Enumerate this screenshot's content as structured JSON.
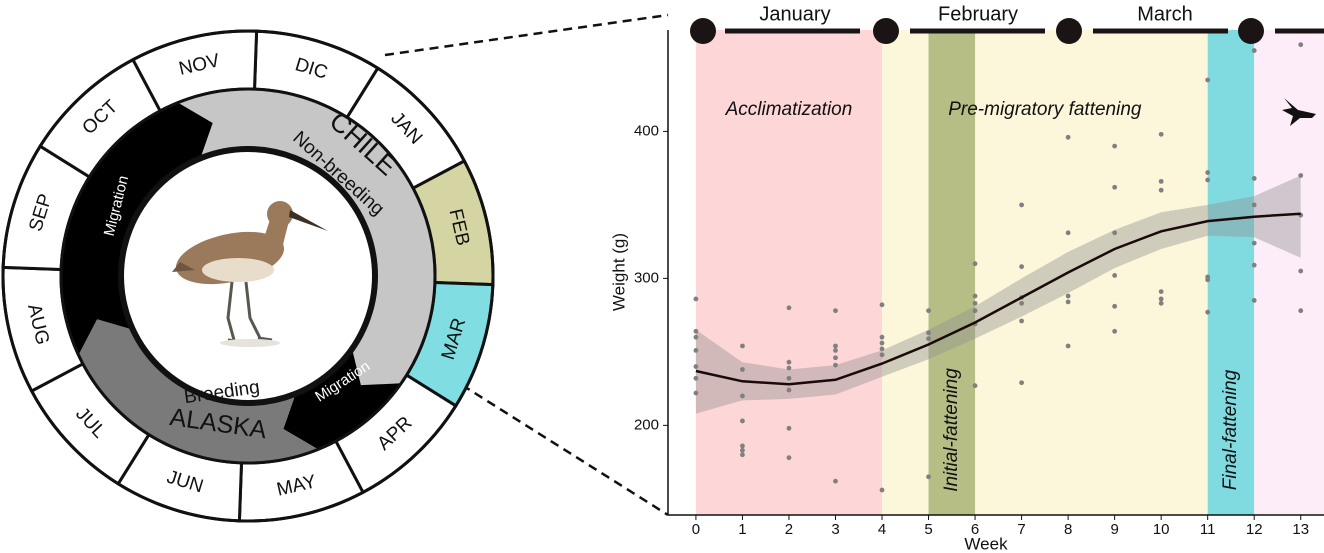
{
  "cycle": {
    "months": [
      {
        "label": "DIC",
        "color": "#ffffff"
      },
      {
        "label": "JAN",
        "color": "#ffffff"
      },
      {
        "label": "FEB",
        "color": "#d4d5a3"
      },
      {
        "label": "MAR",
        "color": "#80dde2"
      },
      {
        "label": "APR",
        "color": "#ffffff"
      },
      {
        "label": "MAY",
        "color": "#ffffff"
      },
      {
        "label": "JUN",
        "color": "#ffffff"
      },
      {
        "label": "JUL",
        "color": "#ffffff"
      },
      {
        "label": "AUG",
        "color": "#ffffff"
      },
      {
        "label": "SEP",
        "color": "#ffffff"
      },
      {
        "label": "OCT",
        "color": "#ffffff"
      },
      {
        "label": "NOV",
        "color": "#ffffff"
      }
    ],
    "chile": "CHILE",
    "non_breeding": "Non-breeding",
    "breeding": "Breeding",
    "alaska": "ALASKA",
    "migration": [
      "Migration",
      "Migration"
    ]
  },
  "chart_data": {
    "type": "scatter",
    "xlabel": "Week",
    "ylabel": "Weight (g)",
    "xlim": [
      -0.6,
      13.5
    ],
    "ylim": [
      139,
      469
    ],
    "xticks": [
      0,
      1,
      2,
      3,
      4,
      5,
      6,
      7,
      8,
      9,
      10,
      11,
      12,
      13
    ],
    "yticks": [
      200,
      300,
      400
    ],
    "months": [
      "January",
      "February",
      "March"
    ],
    "phases": [
      {
        "label": "Acclimatization",
        "start": 0,
        "end": 4,
        "color": "#fdd6d7"
      },
      {
        "label": "Pre-migratory fattening",
        "start": 4,
        "end": 11,
        "color": "#fcf6da"
      },
      {
        "label": "Initial-fattening",
        "start": 5,
        "end": 6,
        "color": "#b6be86"
      },
      {
        "label": "Final-fattening",
        "start": 11,
        "end": 12,
        "color": "#80dbe0"
      },
      {
        "start": 12,
        "end": 13.5,
        "color": "#fcedf8"
      }
    ],
    "points": {
      "color": "#808080",
      "x": [
        0,
        0,
        0,
        0,
        0,
        0,
        0,
        1,
        1,
        1,
        1,
        1,
        1,
        1,
        2,
        2,
        2,
        2,
        2,
        2,
        2,
        3,
        3,
        3,
        3,
        3,
        3,
        4,
        4,
        4,
        4,
        4,
        4,
        5,
        5,
        5,
        5,
        6,
        6,
        6,
        6,
        6,
        6,
        7,
        7,
        7,
        7,
        7,
        7,
        8,
        8,
        8,
        8,
        8,
        9,
        9,
        9,
        9,
        9,
        9,
        10,
        10,
        10,
        10,
        10,
        10,
        11,
        11,
        11,
        11,
        11,
        11,
        12,
        12,
        12,
        12,
        12,
        12,
        13,
        13,
        13,
        13,
        13
      ],
      "y": [
        286,
        264,
        260,
        251,
        240,
        232,
        222,
        254,
        238,
        220,
        203,
        186,
        183,
        180,
        280,
        243,
        239,
        232,
        224,
        198,
        178,
        278,
        254,
        251,
        246,
        241,
        162,
        282,
        260,
        256,
        252,
        248,
        156,
        278,
        263,
        259,
        165,
        310,
        288,
        283,
        278,
        269,
        227,
        350,
        308,
        287,
        283,
        271,
        229,
        396,
        331,
        288,
        284,
        254,
        390,
        362,
        331,
        302,
        281,
        264,
        398,
        366,
        360,
        291,
        286,
        283,
        435,
        372,
        367,
        301,
        299,
        277,
        455,
        368,
        350,
        324,
        309,
        285,
        459,
        370,
        343,
        305,
        278
      ]
    },
    "fit": {
      "color": "#1a0a0a",
      "band_color": "#8f8f8f",
      "x": [
        0,
        1,
        2,
        3,
        4,
        5,
        6,
        7,
        8,
        9,
        10,
        11,
        12,
        13
      ],
      "values": [
        237,
        230,
        228,
        231,
        242,
        255,
        270,
        287,
        304,
        320,
        332,
        339,
        342,
        344
      ],
      "lower": [
        208,
        217,
        218,
        221,
        233,
        245,
        259,
        274,
        290,
        307,
        320,
        329,
        328,
        314
      ],
      "upper": [
        265,
        243,
        238,
        241,
        251,
        265,
        281,
        300,
        318,
        333,
        345,
        350,
        356,
        370
      ]
    }
  }
}
